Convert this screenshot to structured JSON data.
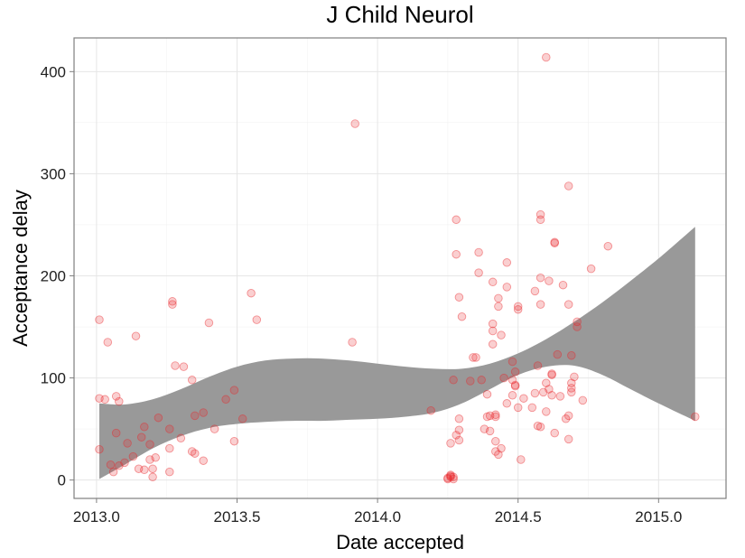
{
  "chart_data": {
    "type": "scatter",
    "title": "J Child Neurol",
    "xlabel": "Date accepted",
    "ylabel": "Acceptance delay",
    "xlim": [
      2012.92,
      2015.24
    ],
    "ylim": [
      -18,
      433
    ],
    "x_ticks": [
      2013.0,
      2013.5,
      2014.0,
      2014.5,
      2015.0
    ],
    "x_tick_labels": [
      "2013.0",
      "2013.5",
      "2014.0",
      "2014.5",
      "2015.0"
    ],
    "y_ticks": [
      0,
      100,
      200,
      300,
      400
    ],
    "y_tick_labels": [
      "0",
      "100",
      "200",
      "300",
      "400"
    ],
    "grid": true,
    "point_color": "#e8262a",
    "band_color": "#999999",
    "points": [
      [
        2013.01,
        157
      ],
      [
        2013.01,
        30
      ],
      [
        2013.01,
        80
      ],
      [
        2013.03,
        79
      ],
      [
        2013.04,
        135
      ],
      [
        2013.05,
        15
      ],
      [
        2013.06,
        8
      ],
      [
        2013.07,
        46
      ],
      [
        2013.07,
        82
      ],
      [
        2013.08,
        77
      ],
      [
        2013.08,
        14
      ],
      [
        2013.1,
        17
      ],
      [
        2013.11,
        36
      ],
      [
        2013.13,
        23
      ],
      [
        2013.14,
        141
      ],
      [
        2013.15,
        11
      ],
      [
        2013.16,
        42
      ],
      [
        2013.17,
        52
      ],
      [
        2013.17,
        10
      ],
      [
        2013.19,
        20
      ],
      [
        2013.19,
        35
      ],
      [
        2013.2,
        11
      ],
      [
        2013.2,
        3
      ],
      [
        2013.21,
        22
      ],
      [
        2013.22,
        61
      ],
      [
        2013.26,
        8
      ],
      [
        2013.26,
        31
      ],
      [
        2013.26,
        50
      ],
      [
        2013.27,
        175
      ],
      [
        2013.27,
        172
      ],
      [
        2013.28,
        112
      ],
      [
        2013.3,
        41
      ],
      [
        2013.31,
        111
      ],
      [
        2013.34,
        98
      ],
      [
        2013.34,
        28
      ],
      [
        2013.35,
        26
      ],
      [
        2013.35,
        63
      ],
      [
        2013.38,
        66
      ],
      [
        2013.38,
        19
      ],
      [
        2013.4,
        154
      ],
      [
        2013.42,
        50
      ],
      [
        2013.46,
        79
      ],
      [
        2013.49,
        38
      ],
      [
        2013.49,
        88
      ],
      [
        2013.52,
        60
      ],
      [
        2013.55,
        183
      ],
      [
        2013.57,
        157
      ],
      [
        2013.92,
        349
      ],
      [
        2013.91,
        135
      ],
      [
        2014.19,
        68
      ],
      [
        2014.25,
        2
      ],
      [
        2014.26,
        5
      ],
      [
        2014.26,
        3
      ],
      [
        2014.25,
        1
      ],
      [
        2014.26,
        4
      ],
      [
        2014.27,
        3
      ],
      [
        2014.26,
        36
      ],
      [
        2014.27,
        1
      ],
      [
        2014.27,
        98
      ],
      [
        2014.28,
        255
      ],
      [
        2014.28,
        221
      ],
      [
        2014.28,
        44
      ],
      [
        2014.29,
        179
      ],
      [
        2014.29,
        60
      ],
      [
        2014.29,
        49
      ],
      [
        2014.29,
        39
      ],
      [
        2014.3,
        160
      ],
      [
        2014.33,
        97
      ],
      [
        2014.34,
        120
      ],
      [
        2014.35,
        120
      ],
      [
        2014.36,
        223
      ],
      [
        2014.36,
        203
      ],
      [
        2014.37,
        98
      ],
      [
        2014.38,
        50
      ],
      [
        2014.39,
        62
      ],
      [
        2014.39,
        84
      ],
      [
        2014.4,
        63
      ],
      [
        2014.4,
        48
      ],
      [
        2014.41,
        194
      ],
      [
        2014.41,
        153
      ],
      [
        2014.41,
        146
      ],
      [
        2014.41,
        133
      ],
      [
        2014.42,
        64
      ],
      [
        2014.42,
        62
      ],
      [
        2014.42,
        38
      ],
      [
        2014.42,
        28
      ],
      [
        2014.43,
        25
      ],
      [
        2014.43,
        170
      ],
      [
        2014.43,
        178
      ],
      [
        2014.44,
        31
      ],
      [
        2014.44,
        142
      ],
      [
        2014.45,
        100
      ],
      [
        2014.46,
        189
      ],
      [
        2014.46,
        213
      ],
      [
        2014.46,
        75
      ],
      [
        2014.48,
        116
      ],
      [
        2014.48,
        98
      ],
      [
        2014.48,
        83
      ],
      [
        2014.49,
        106
      ],
      [
        2014.49,
        93
      ],
      [
        2014.49,
        92
      ],
      [
        2014.5,
        170
      ],
      [
        2014.5,
        167
      ],
      [
        2014.5,
        71
      ],
      [
        2014.51,
        20
      ],
      [
        2014.52,
        80
      ],
      [
        2014.55,
        71
      ],
      [
        2014.56,
        185
      ],
      [
        2014.56,
        85
      ],
      [
        2014.57,
        112
      ],
      [
        2014.57,
        53
      ],
      [
        2014.58,
        52
      ],
      [
        2014.58,
        255
      ],
      [
        2014.58,
        260
      ],
      [
        2014.58,
        198
      ],
      [
        2014.58,
        172
      ],
      [
        2014.59,
        86
      ],
      [
        2014.6,
        95
      ],
      [
        2014.6,
        67
      ],
      [
        2014.6,
        414
      ],
      [
        2014.61,
        195
      ],
      [
        2014.61,
        89
      ],
      [
        2014.62,
        83
      ],
      [
        2014.62,
        103
      ],
      [
        2014.62,
        104
      ],
      [
        2014.63,
        233
      ],
      [
        2014.63,
        232
      ],
      [
        2014.63,
        46
      ],
      [
        2014.64,
        123
      ],
      [
        2014.65,
        82
      ],
      [
        2014.66,
        191
      ],
      [
        2014.67,
        60
      ],
      [
        2014.68,
        40
      ],
      [
        2014.68,
        172
      ],
      [
        2014.68,
        63
      ],
      [
        2014.68,
        288
      ],
      [
        2014.69,
        122
      ],
      [
        2014.69,
        95
      ],
      [
        2014.69,
        90
      ],
      [
        2014.69,
        86
      ],
      [
        2014.7,
        101
      ],
      [
        2014.71,
        150
      ],
      [
        2014.71,
        155
      ],
      [
        2014.73,
        78
      ],
      [
        2014.76,
        207
      ],
      [
        2014.82,
        229
      ],
      [
        2015.13,
        62
      ]
    ],
    "smooth_band": {
      "x": [
        2013.01,
        2013.1,
        2013.2,
        2013.3,
        2013.4,
        2013.5,
        2013.6,
        2013.7,
        2013.8,
        2013.9,
        2014.0,
        2014.1,
        2014.2,
        2014.3,
        2014.4,
        2014.5,
        2014.6,
        2014.7,
        2014.8,
        2014.9,
        2015.0,
        2015.13
      ],
      "upper": [
        75,
        74,
        79,
        89,
        101,
        111,
        117,
        119,
        119,
        117,
        114,
        111,
        109,
        109,
        114,
        124,
        138,
        155,
        174,
        195,
        217,
        248
      ],
      "lower": [
        1,
        15,
        31,
        43,
        51,
        55,
        57,
        58,
        58,
        59,
        60,
        62,
        66,
        75,
        89,
        103,
        111,
        112,
        103,
        89,
        75,
        58
      ]
    }
  }
}
